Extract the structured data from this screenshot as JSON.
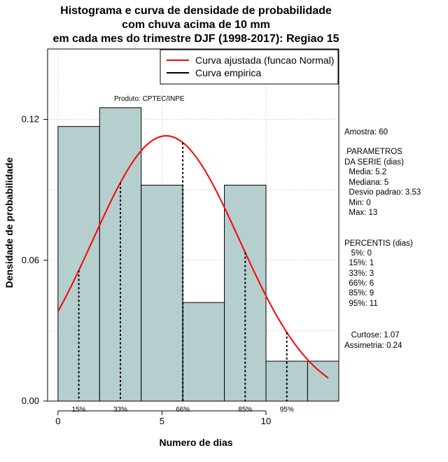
{
  "title": {
    "line1": "Histograma e curva de densidade de probabilidade",
    "line2": "com chuva acima de 10 mm",
    "line3": "em cada mes do trimestre DJF (1998-2017): Regiao 15"
  },
  "product_label": "Produto: CPTEC/INPE",
  "legend": {
    "items": [
      {
        "label": "Curva ajustada (funcao Normal)",
        "color": "#ff0000"
      },
      {
        "label": "Curva empirica",
        "color": "#000000"
      }
    ]
  },
  "stats": {
    "amostra": "Amostra: 60",
    "params_title_1": " PARAMETROS",
    "params_title_2": "DA SERIE (dias)",
    "media": "  Media: 5.2",
    "mediana": "  Mediana: 5",
    "desvio": "  Desvio padrao: 3.53",
    "min": "  Min: 0",
    "max": "  Max: 13",
    "percentis_title": "PERCENTIS (dias)",
    "p5": "   5%: 0",
    "p15": "  15%: 1",
    "p33": "  33%: 3",
    "p66": "  66%: 6",
    "p85": "  85%: 9",
    "p95": "  95%: 11",
    "curtose": "   Curtose: 1.07",
    "assimetria": "Assimetria: 0.24"
  },
  "colors": {
    "bar_fill": "#b5cece",
    "curve": "#ff0000",
    "grid": "#bdbdbd"
  },
  "chart_data": {
    "type": "bar",
    "title": "Histograma e curva de densidade de probabilidade com chuva acima de 10 mm em cada mes do trimestre DJF (1998-2017): Regiao 15",
    "xlabel": "Numero de dias",
    "ylabel": "Densidade de probabilidade",
    "xlim": [
      -0.5,
      13.5
    ],
    "ylim": [
      0,
      0.15
    ],
    "xticks": [
      0,
      5,
      10
    ],
    "yticks": [
      0.0,
      0.06,
      0.12
    ],
    "ytick_labels": [
      "0.00",
      "0.06",
      "0.12"
    ],
    "bins": [
      {
        "x0": 0,
        "x1": 2,
        "density": 0.117
      },
      {
        "x0": 2,
        "x1": 4,
        "density": 0.125
      },
      {
        "x0": 4,
        "x1": 6,
        "density": 0.092
      },
      {
        "x0": 6,
        "x1": 8,
        "density": 0.042
      },
      {
        "x0": 8,
        "x1": 10,
        "density": 0.092
      },
      {
        "x0": 10,
        "x1": 12,
        "density": 0.017
      },
      {
        "x0": 12,
        "x1": 14,
        "density": 0.017
      }
    ],
    "normal_fit": {
      "mean": 5.2,
      "sd": 3.53,
      "x_from": 0,
      "x_to": 13
    },
    "percentile_markers": [
      {
        "label": "15%",
        "x": 1
      },
      {
        "label": "33%",
        "x": 3
      },
      {
        "label": "66%",
        "x": 6
      },
      {
        "label": "85%",
        "x": 9
      },
      {
        "label": "95%",
        "x": 11
      }
    ],
    "grid": true,
    "legend_position": "top-right"
  }
}
